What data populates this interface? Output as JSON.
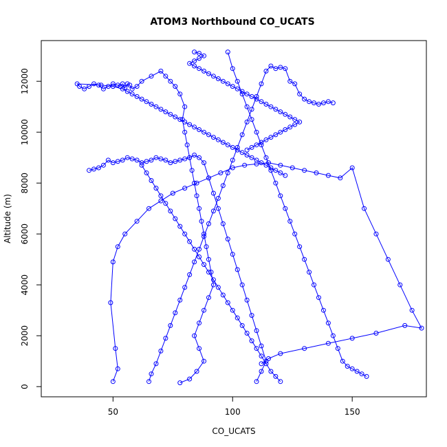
{
  "chart_data": {
    "type": "line",
    "title": "ATOM3 Northbound CO_UCATS",
    "xlabel": "CO_UCATS",
    "ylabel": "Altitude (m)",
    "xlim": [
      20,
      181
    ],
    "ylim": [
      -400,
      13600
    ],
    "xticks": [
      50,
      100,
      150
    ],
    "yticks": [
      0,
      2000,
      4000,
      6000,
      8000,
      10000,
      12000
    ],
    "grid": false,
    "marker": "open-circle",
    "line_color": "#0000ff",
    "series": [
      {
        "x": [
          78,
          82,
          85,
          88,
          86,
          84,
          86,
          88,
          90,
          92,
          91,
          90,
          89,
          88,
          87,
          86,
          85,
          84,
          83,
          82,
          81,
          80,
          79,
          80,
          78,
          76,
          74,
          72,
          70,
          66,
          62,
          60,
          58,
          57,
          56,
          55,
          54,
          53,
          52,
          50,
          48,
          46,
          44,
          42,
          40,
          38,
          36,
          35,
          45,
          50,
          54,
          56,
          58,
          60,
          62,
          64,
          66,
          68,
          70,
          72,
          74,
          76,
          78,
          80,
          82,
          84,
          86,
          88,
          90,
          92,
          94,
          96,
          98,
          100,
          102,
          104,
          106,
          108,
          110,
          112,
          114,
          116,
          118,
          120,
          122
        ],
        "y": [
          150,
          300,
          600,
          1000,
          1500,
          2000,
          2500,
          3000,
          3500,
          4000,
          4500,
          5000,
          5500,
          6000,
          6500,
          7000,
          7500,
          8000,
          8500,
          9000,
          9500,
          10000,
          10500,
          11000,
          11500,
          11800,
          12000,
          12200,
          12400,
          12200,
          12000,
          11800,
          11700,
          11850,
          11900,
          11750,
          11900,
          11800,
          11850,
          11900,
          11800,
          11700,
          11850,
          11900,
          11800,
          11700,
          11800,
          11900,
          11850,
          11800,
          11700,
          11600,
          11500,
          11400,
          11300,
          11200,
          11100,
          11000,
          10900,
          10800,
          10700,
          10600,
          10500,
          10400,
          10300,
          10200,
          10100,
          10000,
          9900,
          9800,
          9700,
          9600,
          9500,
          9400,
          9300,
          9200,
          9100,
          9000,
          8900,
          8800,
          8700,
          8600,
          8500,
          8400,
          8300
        ]
      },
      {
        "x": [
          110,
          112,
          114,
          112,
          110,
          108,
          106,
          104,
          102,
          100,
          98,
          96,
          94,
          92,
          90,
          88,
          86,
          84,
          82,
          80,
          78,
          76,
          74,
          72,
          70,
          68,
          66,
          64,
          62,
          60,
          58,
          56,
          54,
          52,
          50,
          48,
          46,
          44,
          42,
          40
        ],
        "y": [
          200,
          600,
          1000,
          1600,
          2200,
          2800,
          3400,
          4000,
          4600,
          5200,
          5800,
          6400,
          7000,
          7600,
          8200,
          8800,
          9000,
          9100,
          9000,
          8950,
          8900,
          8850,
          8800,
          8900,
          8950,
          9000,
          8900,
          8850,
          8800,
          8900,
          8950,
          9000,
          8900,
          8850,
          8800,
          8900,
          8700,
          8600,
          8550,
          8500
        ]
      },
      {
        "x": [
          50,
          52,
          51,
          49,
          50,
          52,
          55,
          60,
          65,
          70,
          75,
          80,
          85,
          90,
          95,
          100,
          105,
          110,
          115,
          120,
          125,
          130,
          135,
          140,
          145,
          150,
          155,
          160,
          165,
          170,
          175,
          179,
          172,
          160,
          150,
          140,
          130,
          120,
          115,
          112
        ],
        "y": [
          200,
          700,
          1500,
          3300,
          4900,
          5500,
          6000,
          6500,
          7000,
          7300,
          7600,
          7800,
          8000,
          8200,
          8400,
          8600,
          8700,
          8750,
          8800,
          8700,
          8600,
          8500,
          8400,
          8300,
          8200,
          8600,
          7000,
          6000,
          5000,
          4000,
          3000,
          2300,
          2400,
          2100,
          1900,
          1700,
          1500,
          1300,
          1100,
          900
        ]
      },
      {
        "x": [
          65,
          66,
          68,
          70,
          72,
          74,
          76,
          78,
          80,
          82,
          84,
          86,
          88,
          90,
          92,
          94,
          96,
          98,
          100,
          102,
          104,
          106,
          108,
          110,
          112,
          114,
          116,
          118,
          120,
          122,
          124,
          126,
          128,
          130,
          132,
          134,
          136,
          138,
          140,
          142
        ],
        "y": [
          200,
          500,
          900,
          1400,
          1900,
          2400,
          2900,
          3400,
          3900,
          4400,
          4900,
          5400,
          5900,
          6400,
          6900,
          7400,
          7900,
          8400,
          8900,
          9400,
          9900,
          10400,
          10900,
          11400,
          11900,
          12400,
          12600,
          12500,
          12550,
          12500,
          12000,
          11900,
          11500,
          11300,
          11200,
          11150,
          11100,
          11150,
          11200,
          11150
        ]
      },
      {
        "x": [
          84,
          86,
          88,
          86,
          84,
          82,
          84,
          86,
          88,
          90,
          92,
          94,
          96,
          98,
          100,
          102,
          104,
          106,
          108,
          110,
          112,
          114,
          116,
          118,
          120,
          122,
          124,
          126,
          128,
          126,
          124,
          122,
          120,
          118,
          116,
          114,
          112,
          110,
          108,
          106
        ],
        "y": [
          13150,
          13100,
          13000,
          12900,
          12800,
          12700,
          12600,
          12500,
          12400,
          12300,
          12200,
          12100,
          12000,
          11900,
          11800,
          11700,
          11600,
          11500,
          11400,
          11300,
          11200,
          11100,
          11000,
          10900,
          10800,
          10700,
          10600,
          10500,
          10400,
          10300,
          10200,
          10100,
          10000,
          9900,
          9800,
          9700,
          9600,
          9500,
          9400,
          9300
        ]
      },
      {
        "x": [
          120,
          118,
          116,
          114,
          112,
          110,
          108,
          106,
          104,
          102,
          100,
          98,
          96,
          94,
          92,
          90,
          88,
          86,
          84,
          82,
          80,
          78,
          76,
          74,
          72,
          70,
          68,
          66,
          64,
          62
        ],
        "y": [
          200,
          400,
          600,
          900,
          1200,
          1500,
          1800,
          2100,
          2400,
          2700,
          3000,
          3300,
          3600,
          3900,
          4200,
          4500,
          4800,
          5100,
          5400,
          5700,
          6000,
          6300,
          6600,
          6900,
          7200,
          7500,
          7800,
          8100,
          8400,
          8700
        ]
      },
      {
        "x": [
          98,
          100,
          102,
          104,
          106,
          108,
          110,
          112,
          114,
          116,
          118,
          120,
          122,
          124,
          126,
          128,
          130,
          132,
          134,
          136,
          138,
          140,
          142,
          144,
          146,
          148,
          150,
          152,
          154,
          156
        ],
        "y": [
          13150,
          12500,
          12000,
          11500,
          11000,
          10500,
          10000,
          9500,
          9000,
          8500,
          8000,
          7500,
          7000,
          6500,
          6000,
          5500,
          5000,
          4500,
          4000,
          3500,
          3000,
          2500,
          2000,
          1500,
          1000,
          800,
          700,
          600,
          500,
          400
        ]
      }
    ]
  }
}
